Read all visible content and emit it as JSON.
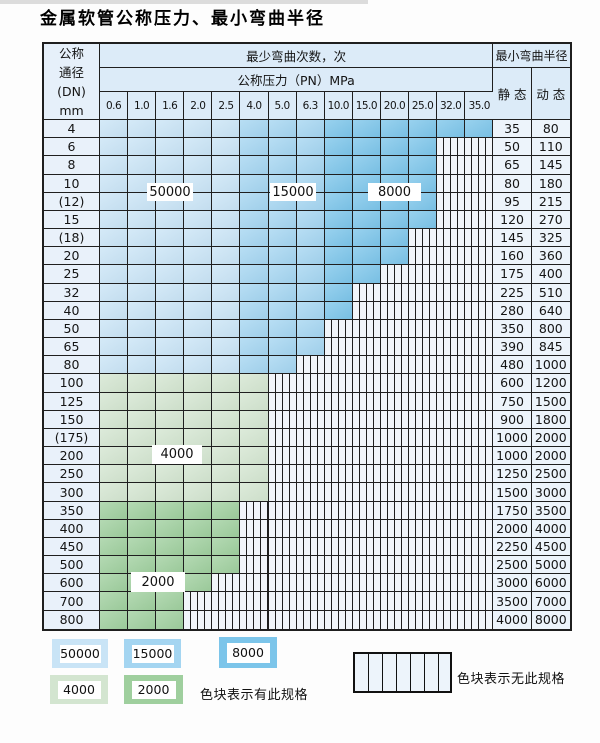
{
  "title": "金属软管公称压力、最小弯曲半径",
  "table": {
    "header": {
      "dn_lines": [
        "公称",
        "通径",
        "(DN)",
        "mm"
      ],
      "cycles_header": "最少弯曲次数，次",
      "pressure_header": "公称压力（PN）MPa",
      "pressures": [
        "0.6",
        "1.0",
        "1.6",
        "2.0",
        "2.5",
        "4.0",
        "5.0",
        "6.3",
        "10.0",
        "15.0",
        "20.0",
        "25.0",
        "32.0",
        "35.0"
      ],
      "radius_header": "最小弯曲半径",
      "static_label": "静 态",
      "dynamic_label": "动 态"
    },
    "rows": [
      {
        "dn": "4",
        "static": "35",
        "dynamic": "80",
        "colored": 14,
        "zone": "blue"
      },
      {
        "dn": "6",
        "static": "50",
        "dynamic": "110",
        "colored": 12,
        "zone": "blue"
      },
      {
        "dn": "8",
        "static": "65",
        "dynamic": "145",
        "colored": 12,
        "zone": "blue"
      },
      {
        "dn": "10",
        "static": "80",
        "dynamic": "180",
        "colored": 12,
        "zone": "blue"
      },
      {
        "dn": "(12)",
        "static": "95",
        "dynamic": "215",
        "colored": 12,
        "zone": "blue"
      },
      {
        "dn": "15",
        "static": "120",
        "dynamic": "270",
        "colored": 12,
        "zone": "blue"
      },
      {
        "dn": "(18)",
        "static": "145",
        "dynamic": "325",
        "colored": 11,
        "zone": "blue"
      },
      {
        "dn": "20",
        "static": "160",
        "dynamic": "360",
        "colored": 11,
        "zone": "blue"
      },
      {
        "dn": "25",
        "static": "175",
        "dynamic": "400",
        "colored": 10,
        "zone": "blue"
      },
      {
        "dn": "32",
        "static": "225",
        "dynamic": "510",
        "colored": 9,
        "zone": "blue"
      },
      {
        "dn": "40",
        "static": "280",
        "dynamic": "640",
        "colored": 9,
        "zone": "blue"
      },
      {
        "dn": "50",
        "static": "350",
        "dynamic": "800",
        "colored": 8,
        "zone": "blue"
      },
      {
        "dn": "65",
        "static": "390",
        "dynamic": "845",
        "colored": 8,
        "zone": "blue"
      },
      {
        "dn": "80",
        "static": "480",
        "dynamic": "1000",
        "colored": 7,
        "zone": "blue"
      },
      {
        "dn": "100",
        "static": "600",
        "dynamic": "1200",
        "colored": 6,
        "zone": "g4000"
      },
      {
        "dn": "125",
        "static": "750",
        "dynamic": "1500",
        "colored": 6,
        "zone": "g4000"
      },
      {
        "dn": "150",
        "static": "900",
        "dynamic": "1800",
        "colored": 6,
        "zone": "g4000"
      },
      {
        "dn": "(175)",
        "static": "1000",
        "dynamic": "2000",
        "colored": 6,
        "zone": "g4000"
      },
      {
        "dn": "200",
        "static": "1000",
        "dynamic": "2000",
        "colored": 6,
        "zone": "g4000"
      },
      {
        "dn": "250",
        "static": "1250",
        "dynamic": "2500",
        "colored": 6,
        "zone": "g4000"
      },
      {
        "dn": "300",
        "static": "1500",
        "dynamic": "3000",
        "colored": 6,
        "zone": "g4000"
      },
      {
        "dn": "350",
        "static": "1750",
        "dynamic": "3500",
        "colored": 5,
        "zone": "g2000"
      },
      {
        "dn": "400",
        "static": "2000",
        "dynamic": "4000",
        "colored": 5,
        "zone": "g2000"
      },
      {
        "dn": "450",
        "static": "2250",
        "dynamic": "4500",
        "colored": 5,
        "zone": "g2000"
      },
      {
        "dn": "500",
        "static": "2500",
        "dynamic": "5000",
        "colored": 5,
        "zone": "g2000"
      },
      {
        "dn": "600",
        "static": "3000",
        "dynamic": "6000",
        "colored": 4,
        "zone": "g2000"
      },
      {
        "dn": "700",
        "static": "3500",
        "dynamic": "7000",
        "colored": 3,
        "zone": "g2000"
      },
      {
        "dn": "800",
        "static": "4000",
        "dynamic": "8000",
        "colored": 3,
        "zone": "g2000"
      }
    ]
  },
  "overlay_labels": {
    "l50000": "50000",
    "l15000": "15000",
    "l8000": "8000",
    "l4000": "4000",
    "l2000": "2000"
  },
  "legend": {
    "swatches": [
      {
        "value": "50000",
        "color_key": "c50000"
      },
      {
        "value": "15000",
        "color_key": "c15000"
      },
      {
        "value": "8000",
        "color_key": "c8000"
      },
      {
        "value": "4000",
        "color_key": "c4000"
      },
      {
        "value": "2000",
        "color_key": "c2000"
      }
    ],
    "has_spec_note": "色块表示有此规格",
    "no_spec_note": "色块表示无此规格"
  },
  "colors": {
    "c50000": "#c9e4f6",
    "c15000": "#a4d5f1",
    "c8000": "#7cc5ea",
    "c4000": "#d3e5d0",
    "c2000": "#9fcf9e",
    "grid": "#1f1f1f",
    "header_bg": "#dcebf8",
    "row_label_bg": "#e9f1fa",
    "value_bg": "#edf4fb"
  }
}
